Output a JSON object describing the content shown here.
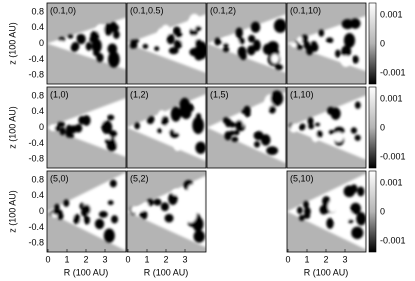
{
  "panels": [
    {
      "label": "(0.1,0)"
    },
    {
      "label": "(0.1,0.5)"
    },
    {
      "label": "(0.1,2)"
    },
    {
      "label": "(0.1,10)"
    },
    {
      "label": "(1,0)"
    },
    {
      "label": "(1,2)"
    },
    {
      "label": "(1,5)"
    },
    {
      "label": "(1,10)"
    },
    {
      "label": "(5,0)"
    },
    {
      "label": "(5,2)"
    },
    {
      "label": "(5,10)"
    }
  ],
  "y_axis": {
    "label": "z (100 AU)",
    "ticks": [
      "0.8",
      "0.4",
      "0",
      "-0.4",
      "-0.8"
    ]
  },
  "x_axis": {
    "label": "R (100 AU)",
    "ticks": [
      "0",
      "1",
      "2",
      "3"
    ]
  },
  "colorbar": {
    "ticks": [
      "0.001",
      "0",
      "-0.001"
    ]
  }
}
